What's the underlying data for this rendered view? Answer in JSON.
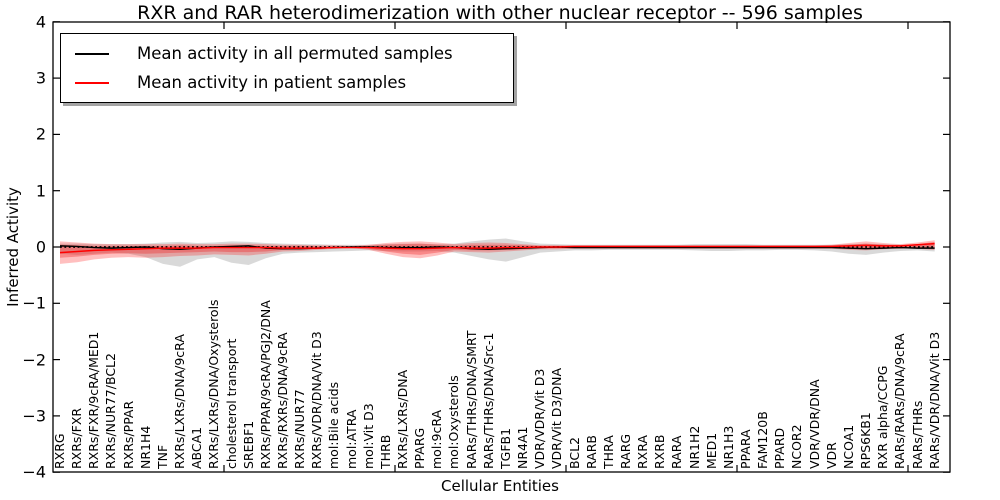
{
  "chart_data": {
    "type": "line",
    "title": "RXR and RAR heterodimerization with other nuclear receptor -- 596 samples",
    "xlabel": "Cellular Entities",
    "ylabel": "Inferred Activity",
    "ylim": [
      -4,
      4
    ],
    "yticks": [
      4,
      3,
      2,
      1,
      0,
      -1,
      -2,
      -3,
      -4
    ],
    "ytick_labels": [
      "4",
      "3",
      "2",
      "1",
      "0",
      "−1",
      "−2",
      "−3",
      "−4"
    ],
    "legend_position": "upper left",
    "grid": false,
    "zero_line": {
      "style": "dotted",
      "color": "#000000"
    },
    "categories": [
      "RXRG",
      "RXRs/FXR",
      "RXRs/FXR/9cRA/MED1",
      "RXRs/NUR77/BCL2",
      "RXRs/PPAR",
      "NR1H4",
      "TNF",
      "RXRs/LXRs/DNA/9cRA",
      "ABCA1",
      "RXRs/LXRs/DNA/Oxysterols",
      "cholesterol transport",
      "SREBF1",
      "RXRs/PPAR/9cRA/PGJ2/DNA",
      "RXRs/RXRs/DNA/9cRA",
      "RXRs/NUR77",
      "RXRs/VDR/DNA/Vit D3",
      "mol:Bile acids",
      "mol:ATRA",
      "mol:Vit D3",
      "THRB",
      "RXRs/LXRs/DNA",
      "PPARG",
      "mol:9cRA",
      "mol:Oxysterols",
      "RARs/THRs/DNA/SMRT",
      "RARs/THRs/DNA/Src-1",
      "TGFB1",
      "NR4A1",
      "VDR/VDR/Vit D3",
      "VDR/Vit D3/DNA",
      "BCL2",
      "RARB",
      "THRA",
      "RARG",
      "RXRA",
      "RXRB",
      "RARA",
      "NR1H2",
      "MED1",
      "NR1H3",
      "PPARA",
      "FAM120B",
      "PPARD",
      "NCOR2",
      "VDR/VDR/DNA",
      "VDR",
      "NCOA1",
      "RPS6KB1",
      "RXR alpha/CCPG",
      "RARs/RARs/DNA/9cRA",
      "RARs/THRs",
      "RARs/VDR/DNA/Vit D3"
    ],
    "series": [
      {
        "name": "Mean activity in all permuted samples",
        "color": "#000000",
        "values": [
          0.02,
          0.01,
          -0.01,
          -0.02,
          -0.01,
          0.0,
          -0.03,
          -0.04,
          -0.02,
          0.0,
          0.01,
          0.02,
          -0.02,
          -0.03,
          -0.03,
          -0.02,
          -0.01,
          0.0,
          0.0,
          -0.01,
          -0.01,
          -0.01,
          0.0,
          -0.01,
          -0.03,
          -0.04,
          -0.03,
          -0.02,
          -0.01,
          0.0,
          -0.01,
          -0.01,
          -0.01,
          -0.01,
          -0.01,
          -0.01,
          -0.01,
          -0.01,
          -0.01,
          -0.01,
          -0.01,
          -0.01,
          -0.01,
          -0.01,
          -0.01,
          -0.01,
          -0.02,
          -0.03,
          -0.02,
          -0.01,
          -0.02,
          -0.02
        ]
      },
      {
        "name": "Mean activity in patient samples",
        "color": "#ff0000",
        "values": [
          -0.1,
          -0.08,
          -0.06,
          -0.05,
          -0.04,
          -0.03,
          -0.02,
          -0.02,
          -0.02,
          -0.01,
          -0.01,
          -0.01,
          -0.01,
          -0.02,
          -0.02,
          -0.02,
          -0.01,
          -0.01,
          -0.01,
          -0.02,
          -0.03,
          -0.03,
          -0.02,
          -0.01,
          -0.02,
          -0.02,
          -0.01,
          -0.01,
          0.0,
          0.0,
          0.01,
          0.01,
          0.01,
          0.01,
          0.01,
          0.01,
          0.01,
          0.01,
          0.01,
          0.01,
          0.01,
          0.01,
          0.01,
          0.01,
          0.01,
          0.01,
          0.02,
          0.03,
          0.02,
          0.02,
          0.04,
          0.06
        ]
      }
    ],
    "bands": [
      {
        "name": "permuted-samples-range",
        "color": "#aaaaaa",
        "opacity": 0.45,
        "upper": [
          0.06,
          0.06,
          0.05,
          0.05,
          0.05,
          0.06,
          0.08,
          0.09,
          0.07,
          0.08,
          0.1,
          0.09,
          0.07,
          0.06,
          0.05,
          0.05,
          0.04,
          0.04,
          0.04,
          0.05,
          0.06,
          0.06,
          0.05,
          0.06,
          0.1,
          0.13,
          0.15,
          0.1,
          0.06,
          0.05,
          0.04,
          0.04,
          0.04,
          0.04,
          0.04,
          0.04,
          0.04,
          0.05,
          0.05,
          0.05,
          0.05,
          0.04,
          0.04,
          0.04,
          0.04,
          0.04,
          0.05,
          0.06,
          0.05,
          0.04,
          0.04,
          0.05
        ],
        "lower": [
          -0.12,
          -0.14,
          -0.12,
          -0.1,
          -0.12,
          -0.18,
          -0.3,
          -0.35,
          -0.22,
          -0.18,
          -0.28,
          -0.32,
          -0.2,
          -0.12,
          -0.1,
          -0.09,
          -0.08,
          -0.07,
          -0.06,
          -0.07,
          -0.08,
          -0.08,
          -0.07,
          -0.1,
          -0.16,
          -0.22,
          -0.26,
          -0.18,
          -0.1,
          -0.08,
          -0.06,
          -0.06,
          -0.05,
          -0.05,
          -0.05,
          -0.05,
          -0.05,
          -0.06,
          -0.07,
          -0.07,
          -0.06,
          -0.06,
          -0.05,
          -0.05,
          -0.06,
          -0.08,
          -0.12,
          -0.14,
          -0.1,
          -0.07,
          -0.06,
          -0.08
        ]
      },
      {
        "name": "patient-samples-range-outer",
        "color": "#ff0000",
        "opacity": 0.25,
        "upper": [
          0.1,
          0.08,
          0.06,
          0.05,
          0.05,
          0.05,
          0.05,
          0.06,
          0.05,
          0.05,
          0.06,
          0.06,
          0.05,
          0.04,
          0.04,
          0.03,
          0.03,
          0.02,
          0.04,
          0.07,
          0.09,
          0.1,
          0.08,
          0.05,
          0.07,
          0.08,
          0.07,
          0.05,
          0.03,
          0.03,
          0.03,
          0.03,
          0.03,
          0.03,
          0.03,
          0.03,
          0.03,
          0.03,
          0.03,
          0.03,
          0.03,
          0.03,
          0.03,
          0.03,
          0.03,
          0.04,
          0.07,
          0.1,
          0.07,
          0.05,
          0.08,
          0.12
        ],
        "lower": [
          -0.3,
          -0.27,
          -0.22,
          -0.19,
          -0.18,
          -0.19,
          -0.18,
          -0.16,
          -0.15,
          -0.13,
          -0.14,
          -0.15,
          -0.12,
          -0.08,
          -0.07,
          -0.05,
          -0.03,
          -0.02,
          -0.05,
          -0.12,
          -0.18,
          -0.2,
          -0.15,
          -0.08,
          -0.09,
          -0.1,
          -0.08,
          -0.06,
          -0.04,
          -0.04,
          -0.03,
          -0.03,
          -0.03,
          -0.03,
          -0.03,
          -0.03,
          -0.03,
          -0.03,
          -0.03,
          -0.03,
          -0.03,
          -0.03,
          -0.03,
          -0.03,
          -0.03,
          -0.03,
          -0.05,
          -0.06,
          -0.04,
          -0.03,
          -0.02,
          -0.01
        ]
      },
      {
        "name": "patient-samples-range-inner",
        "color": "#ee2222",
        "opacity": 0.35,
        "upper": [
          0.04,
          0.03,
          0.02,
          0.02,
          0.02,
          0.02,
          0.02,
          0.03,
          0.02,
          0.02,
          0.03,
          0.03,
          0.02,
          0.02,
          0.02,
          0.01,
          0.01,
          0.01,
          0.02,
          0.04,
          0.05,
          0.06,
          0.04,
          0.02,
          0.04,
          0.04,
          0.04,
          0.03,
          0.02,
          0.02,
          0.02,
          0.02,
          0.02,
          0.02,
          0.02,
          0.02,
          0.02,
          0.02,
          0.02,
          0.02,
          0.02,
          0.02,
          0.02,
          0.02,
          0.02,
          0.03,
          0.04,
          0.06,
          0.04,
          0.03,
          0.05,
          0.09
        ],
        "lower": [
          -0.19,
          -0.17,
          -0.14,
          -0.12,
          -0.11,
          -0.12,
          -0.11,
          -0.1,
          -0.09,
          -0.08,
          -0.09,
          -0.09,
          -0.08,
          -0.05,
          -0.04,
          -0.03,
          -0.02,
          -0.01,
          -0.03,
          -0.08,
          -0.12,
          -0.14,
          -0.1,
          -0.05,
          -0.06,
          -0.06,
          -0.05,
          -0.04,
          -0.02,
          -0.02,
          -0.02,
          -0.02,
          -0.02,
          -0.02,
          -0.02,
          -0.02,
          -0.02,
          -0.02,
          -0.02,
          -0.02,
          -0.02,
          -0.02,
          -0.02,
          -0.02,
          -0.02,
          -0.02,
          -0.03,
          -0.04,
          -0.03,
          -0.02,
          -0.03,
          -0.05
        ]
      }
    ]
  }
}
